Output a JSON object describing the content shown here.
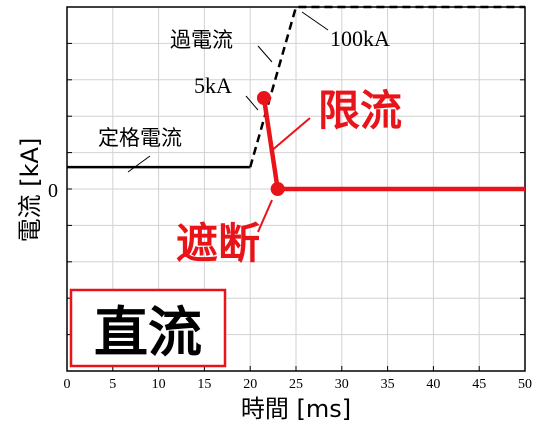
{
  "chart_data": {
    "type": "line",
    "xlabel": "時間 [ms]",
    "ylabel": "電流 [kA]",
    "xlim": [
      0,
      50
    ],
    "x_ticks": [
      "0",
      "5",
      "10",
      "15",
      "20",
      "25",
      "30",
      "35",
      "40",
      "45",
      "50"
    ],
    "y_ticks": [
      "0"
    ],
    "grid": true,
    "series": [
      {
        "name": "定格電流",
        "color": "#000000",
        "style": "solid",
        "points": [
          [
            0,
            1.2
          ],
          [
            20,
            1.2
          ]
        ]
      },
      {
        "name": "過電流",
        "color": "#000000",
        "style": "dashed",
        "points": [
          [
            20,
            1.2
          ],
          [
            25,
            10
          ],
          [
            50,
            10
          ]
        ]
      },
      {
        "name": "限流",
        "color": "#e8141a",
        "style": "solid",
        "points": [
          [
            21.5,
            5
          ],
          [
            23,
            0
          ],
          [
            50,
            0
          ]
        ]
      }
    ],
    "markers": [
      {
        "label": "5kA",
        "x": 21.5,
        "y": 5,
        "color": "#e8141a"
      },
      {
        "label": "遮断",
        "x": 23,
        "y": 0,
        "color": "#e8141a"
      }
    ],
    "annotations": {
      "rated": "定格電流",
      "over": "過電流",
      "five_ka": "5kA",
      "hundred_ka": "100kA",
      "limit": "限流",
      "cutoff": "遮断",
      "box": "直流"
    }
  }
}
